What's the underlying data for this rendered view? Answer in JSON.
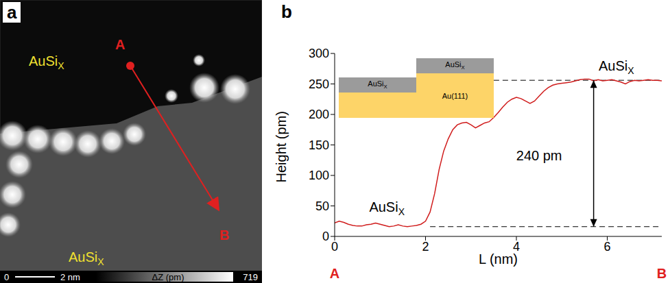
{
  "panel_a": {
    "letter": "a",
    "labels": [
      "AuSiX",
      "AuSiX"
    ],
    "line_start": "A",
    "line_end": "B",
    "scale_bar": "2 nm",
    "colorbar_title": "ΔZ (pm)",
    "colorbar_range": [
      0,
      719
    ]
  },
  "chart_data": {
    "type": "line",
    "panel_label": "b",
    "x_label": "L (nm)",
    "y_label": "Height (pm)",
    "x": [
      0,
      0.1,
      0.2,
      0.3,
      0.4,
      0.5,
      0.6,
      0.7,
      0.8,
      0.9,
      1.0,
      1.1,
      1.2,
      1.3,
      1.4,
      1.5,
      1.6,
      1.7,
      1.8,
      1.9,
      2.0,
      2.1,
      2.2,
      2.3,
      2.4,
      2.5,
      2.6,
      2.7,
      2.8,
      2.9,
      3.0,
      3.1,
      3.2,
      3.3,
      3.4,
      3.5,
      3.6,
      3.7,
      3.8,
      3.9,
      4.0,
      4.1,
      4.2,
      4.3,
      4.4,
      4.5,
      4.6,
      4.7,
      4.8,
      4.9,
      5.0,
      5.1,
      5.2,
      5.3,
      5.4,
      5.5,
      5.6,
      5.7,
      5.8,
      5.9,
      6.0,
      6.1,
      6.2,
      6.3,
      6.4,
      6.5,
      6.6,
      6.7,
      6.8,
      6.9,
      7.0,
      7.1,
      7.2
    ],
    "values": [
      22,
      25,
      23,
      20,
      18,
      17,
      17,
      19,
      20,
      22,
      20,
      18,
      16,
      17,
      19,
      17,
      16,
      17,
      18,
      20,
      25,
      40,
      70,
      110,
      140,
      160,
      175,
      183,
      186,
      187,
      183,
      178,
      182,
      186,
      188,
      195,
      203,
      212,
      220,
      225,
      228,
      226,
      222,
      218,
      222,
      230,
      238,
      244,
      248,
      250,
      251,
      252,
      253,
      255,
      257,
      258,
      258,
      255,
      257,
      255,
      256,
      257,
      255,
      253,
      250,
      254,
      256,
      255,
      256,
      257,
      256,
      256,
      255
    ],
    "color": "#d01c1c",
    "xlim": [
      0,
      7.2
    ],
    "xticks": [
      0,
      2,
      4,
      6
    ],
    "ylim": [
      0,
      300
    ],
    "yticks": [
      0,
      50,
      100,
      150,
      200,
      250,
      300
    ],
    "reference_lines": [
      16,
      256
    ],
    "annotations": [
      "AuSiX",
      "AuSiX",
      "240 pm"
    ],
    "inset": [
      "AuSiX",
      "AuSiX",
      "Au(111)"
    ],
    "x_end_labels": [
      "A",
      "B"
    ]
  }
}
